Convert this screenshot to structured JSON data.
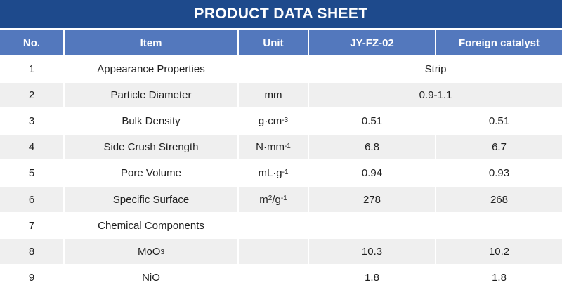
{
  "title": "PRODUCT DATA SHEET",
  "colors": {
    "title_bg": "#1e4a8c",
    "header_bg": "#5378bd",
    "header_text": "#ffffff",
    "row_bg": "#ffffff",
    "row_alt_bg": "#efefef",
    "body_text": "#1f1f1f"
  },
  "table": {
    "columns": [
      {
        "label": "No."
      },
      {
        "label": "Item"
      },
      {
        "label": "Unit"
      },
      {
        "label": "JY-FZ-02"
      },
      {
        "label": "Foreign catalyst"
      }
    ],
    "rows": [
      {
        "no": "1",
        "item": [
          [
            "Appearance Properties"
          ]
        ],
        "unit": [],
        "merged": [
          [
            "Strip"
          ]
        ]
      },
      {
        "no": "2",
        "item": [
          [
            "Particle Diameter"
          ]
        ],
        "unit": [
          [
            "mm"
          ]
        ],
        "merged": [
          [
            "0.9-1.1"
          ]
        ]
      },
      {
        "no": "3",
        "item": [
          [
            "Bulk Density"
          ]
        ],
        "unit": [
          [
            "g·cm "
          ],
          [
            "-3",
            "sup"
          ]
        ],
        "jy": [
          [
            "0.51"
          ]
        ],
        "foreign": [
          [
            "0.51"
          ]
        ]
      },
      {
        "no": "4",
        "item": [
          [
            "Side Crush Strength"
          ]
        ],
        "unit": [
          [
            "N·mm "
          ],
          [
            "-1",
            "sup"
          ]
        ],
        "jy": [
          [
            "6.8"
          ]
        ],
        "foreign": [
          [
            "6.7"
          ]
        ]
      },
      {
        "no": "5",
        "item": [
          [
            "Pore Volume"
          ]
        ],
        "unit": [
          [
            "mL·g "
          ],
          [
            "-1",
            "sup"
          ]
        ],
        "jy": [
          [
            "0.94"
          ]
        ],
        "foreign": [
          [
            "0.93"
          ]
        ]
      },
      {
        "no": "6",
        "item": [
          [
            "Specific Surface"
          ]
        ],
        "unit": [
          [
            "m"
          ],
          [
            "2",
            "sup"
          ],
          [
            "/g"
          ],
          [
            "-1",
            "sup"
          ]
        ],
        "jy": [
          [
            "278"
          ]
        ],
        "foreign": [
          [
            "268"
          ]
        ]
      },
      {
        "no": "7",
        "item": [
          [
            "Chemical Components"
          ]
        ],
        "unit": [],
        "jy": [],
        "foreign": []
      },
      {
        "no": "8",
        "item": [
          [
            "MoO"
          ],
          [
            "3",
            "sub"
          ]
        ],
        "unit": [],
        "jy": [
          [
            "10.3"
          ]
        ],
        "foreign": [
          [
            "10.2"
          ]
        ]
      },
      {
        "no": "9",
        "item": [
          [
            "NiO"
          ]
        ],
        "unit": [],
        "jy": [
          [
            "1.8"
          ]
        ],
        "foreign": [
          [
            "1.8"
          ]
        ]
      }
    ]
  }
}
